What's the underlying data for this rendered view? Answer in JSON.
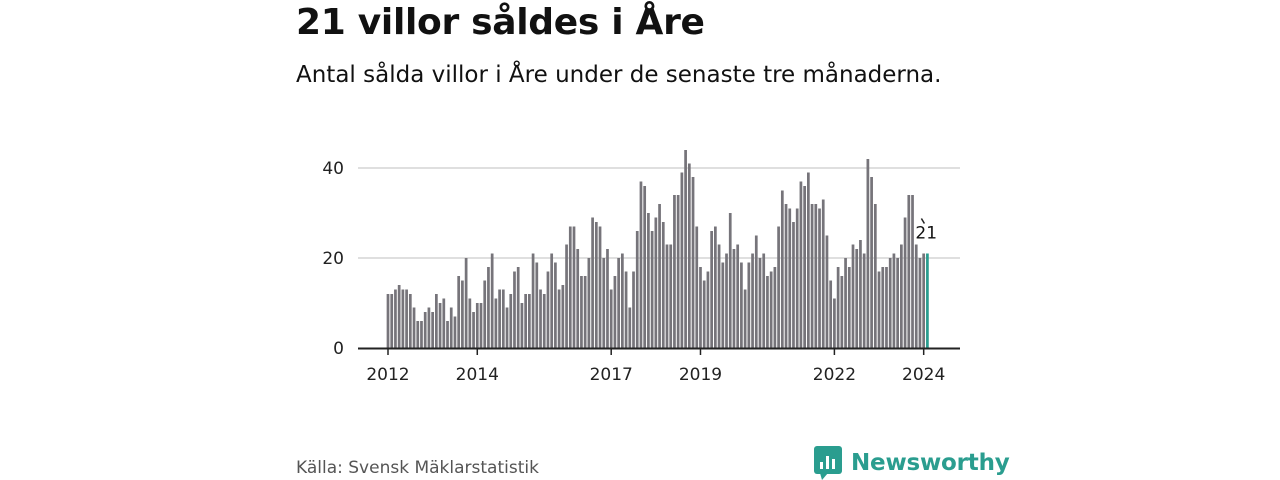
{
  "header": {
    "title": "21 villor såldes i Åre",
    "subtitle": "Antal sålda villor i Åre under de senaste tre månaderna."
  },
  "footer": {
    "source": "Källa: Svensk Mäklarstatistik",
    "brand": "Newsworthy"
  },
  "colors": {
    "bar": "#76747a",
    "highlight": "#2a9d8f",
    "grid": "#cccccc",
    "axis": "#222222",
    "text": "#222222"
  },
  "chart_data": {
    "type": "bar",
    "title": "21 villor såldes i Åre",
    "xlabel": "",
    "ylabel": "",
    "ylim": [
      0,
      40
    ],
    "yticks": [
      0,
      20,
      40
    ],
    "xtick_labels": [
      {
        "label": "2012",
        "index": 0
      },
      {
        "label": "2014",
        "index": 24
      },
      {
        "label": "2017",
        "index": 60
      },
      {
        "label": "2019",
        "index": 84
      },
      {
        "label": "2022",
        "index": 120
      },
      {
        "label": "2024",
        "index": 144
      }
    ],
    "highlight_index": 145,
    "highlight_label": "21",
    "values": [
      12,
      12,
      13,
      14,
      13,
      13,
      12,
      9,
      6,
      6,
      8,
      9,
      8,
      12,
      10,
      11,
      6,
      9,
      7,
      16,
      15,
      20,
      11,
      8,
      10,
      10,
      15,
      18,
      21,
      11,
      13,
      13,
      9,
      12,
      17,
      18,
      10,
      12,
      12,
      21,
      19,
      13,
      12,
      17,
      21,
      19,
      13,
      14,
      23,
      27,
      27,
      22,
      16,
      16,
      20,
      29,
      28,
      27,
      20,
      22,
      13,
      16,
      20,
      21,
      17,
      9,
      17,
      26,
      37,
      36,
      30,
      26,
      29,
      32,
      28,
      23,
      23,
      34,
      34,
      39,
      44,
      41,
      38,
      27,
      18,
      15,
      17,
      26,
      27,
      23,
      19,
      21,
      30,
      22,
      23,
      19,
      13,
      19,
      21,
      25,
      20,
      21,
      16,
      17,
      18,
      27,
      35,
      32,
      31,
      28,
      31,
      37,
      36,
      39,
      32,
      32,
      31,
      33,
      25,
      15,
      11,
      18,
      16,
      20,
      18,
      23,
      22,
      24,
      21,
      42,
      38,
      32,
      17,
      18,
      18,
      20,
      21,
      20,
      23,
      29,
      34,
      34,
      23,
      20,
      21,
      21
    ]
  }
}
